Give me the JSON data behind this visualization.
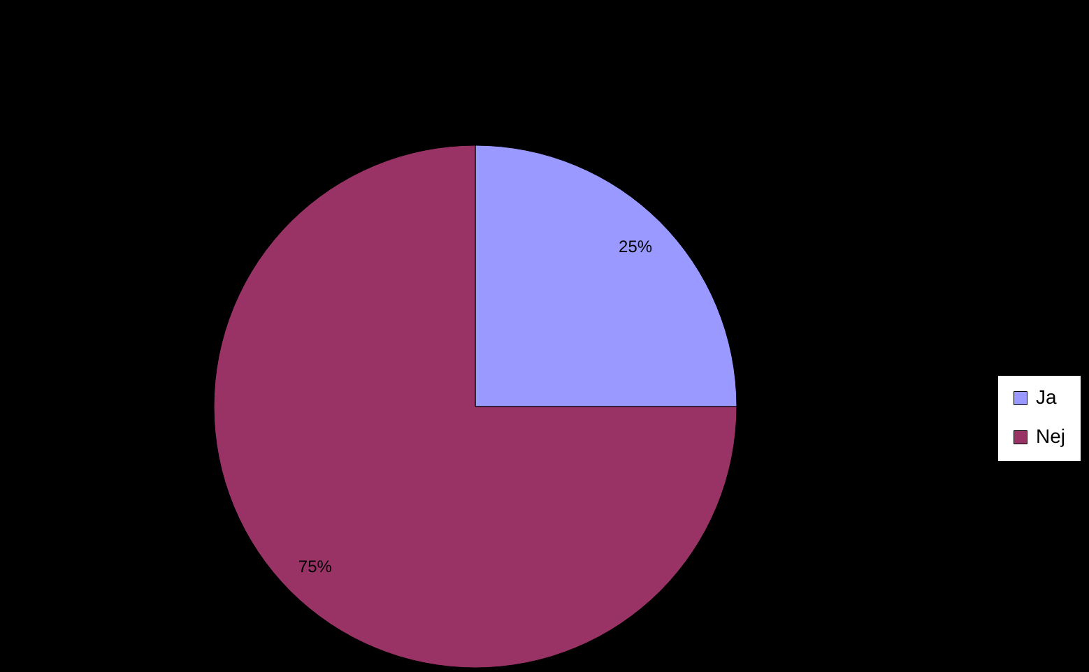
{
  "chart_data": {
    "type": "pie",
    "categories": [
      "Ja",
      "Nej"
    ],
    "values": [
      25,
      75
    ],
    "colors": [
      "#9999ff",
      "#993366"
    ],
    "value_labels": [
      "25%",
      "75%"
    ],
    "legend": "right"
  }
}
